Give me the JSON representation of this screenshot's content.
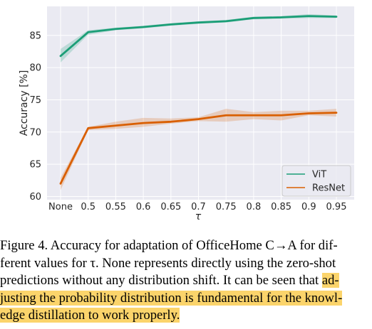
{
  "chart_data": {
    "type": "line",
    "categories": [
      "None",
      "0.5",
      "0.55",
      "0.6",
      "0.65",
      "0.7",
      "0.75",
      "0.8",
      "0.85",
      "0.9",
      "0.95"
    ],
    "xlabel": "τ",
    "ylabel": "Accuracy [%]",
    "ylim": [
      59.5,
      89.5
    ],
    "yticks": [
      60,
      65,
      70,
      75,
      80,
      85
    ],
    "grid": true,
    "background": "#eaeaf2",
    "legend_position": "lower-right",
    "series": [
      {
        "name": "ViT",
        "color": "#1b9e77",
        "values": [
          81.8,
          85.5,
          86.0,
          86.3,
          86.7,
          87.0,
          87.2,
          87.7,
          87.8,
          88.0,
          87.9
        ],
        "band_low": [
          80.8,
          85.1,
          85.8,
          86.1,
          86.5,
          86.8,
          87.0,
          87.5,
          87.6,
          87.7,
          87.7
        ],
        "band_high": [
          82.9,
          85.8,
          86.2,
          86.5,
          86.9,
          87.2,
          87.4,
          87.9,
          88.0,
          88.3,
          88.1
        ]
      },
      {
        "name": "ResNet",
        "color": "#d95f02",
        "values": [
          62.0,
          70.6,
          71.0,
          71.4,
          71.6,
          72.0,
          72.6,
          72.6,
          72.6,
          72.9,
          73.0
        ],
        "band_low": [
          61.0,
          70.3,
          70.5,
          70.8,
          71.3,
          71.7,
          71.6,
          72.0,
          71.8,
          72.6,
          72.4
        ],
        "band_high": [
          62.9,
          70.8,
          71.6,
          72.2,
          72.1,
          72.3,
          73.6,
          73.1,
          73.3,
          73.3,
          73.6
        ]
      }
    ]
  },
  "caption": {
    "lines": [
      [
        {
          "text": "Figure 4.  Accuracy for adaptation of OfficeHome C→A for dif-",
          "hl": false
        }
      ],
      [
        {
          "text": "ferent values for τ.  None represents directly using the zero-shot",
          "hl": false
        }
      ],
      [
        {
          "text": "predictions without any distribution shift.  It can be seen that ",
          "hl": false
        },
        {
          "text": "ad-",
          "hl": true
        }
      ],
      [
        {
          "text": "justing the probability distribution is fundamental for the knowl-",
          "hl": true
        }
      ],
      [
        {
          "text": "edge distillation to work properly.",
          "hl": true
        }
      ]
    ],
    "highlight_color": "#fbd46b"
  }
}
